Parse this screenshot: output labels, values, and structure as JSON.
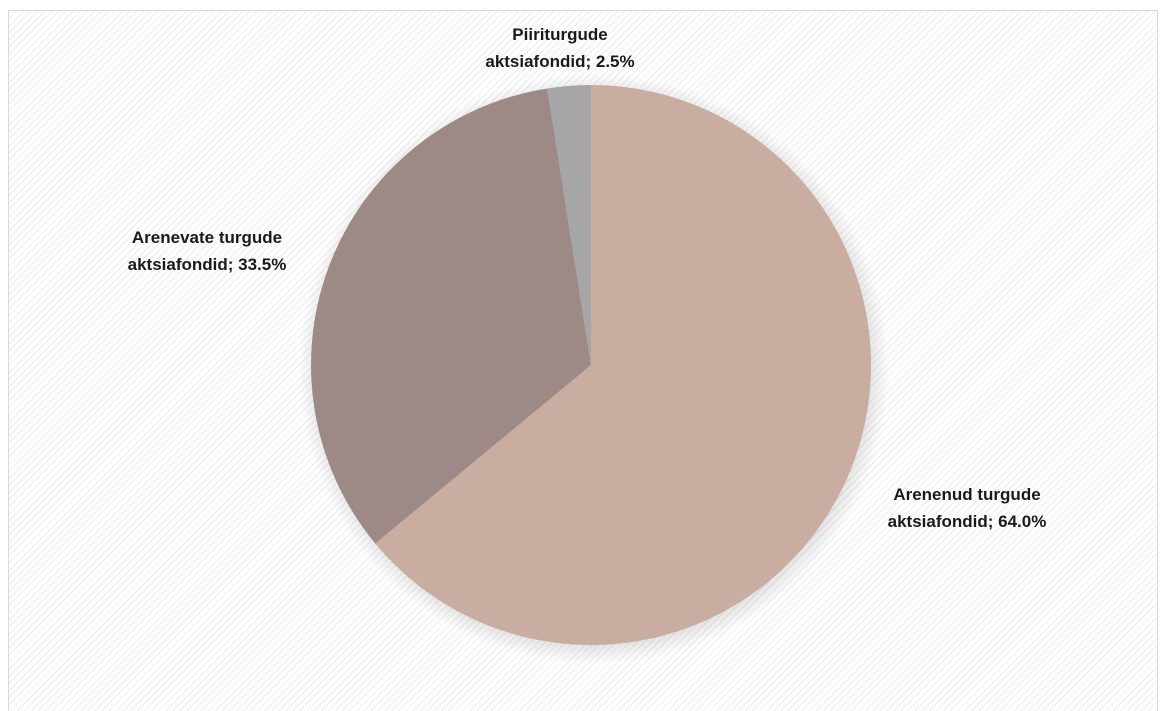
{
  "chart_data": {
    "type": "pie",
    "title": "",
    "slices": [
      {
        "label": "Arenenud turgude aktsiafondid",
        "value": 64.0,
        "label_text": "Arenenud turgude aktsiafondid; 64.0%",
        "label_lines": [
          "Arenenud turgude",
          "aktsiafondid; 64.0%"
        ],
        "color": "#c9ada1"
      },
      {
        "label": "Arenevate turgude aktsiafondid",
        "value": 33.5,
        "label_text": "Arenevate turgude aktsiafondid; 33.5%",
        "label_lines": [
          "Arenevate turgude",
          "aktsiafondid; 33.5%"
        ],
        "color": "#9d8a86"
      },
      {
        "label": "Piiriturgude aktsiafondid",
        "value": 2.5,
        "label_text": "Piiriturgude aktsiafondid; 2.5%",
        "label_lines": [
          "Piiriturgude",
          "aktsiafondid; 2.5%"
        ],
        "color": "#a6a6a6"
      }
    ],
    "start_angle_deg": 0,
    "direction": "clockwise",
    "legend": "none",
    "data_labels": "outside"
  }
}
